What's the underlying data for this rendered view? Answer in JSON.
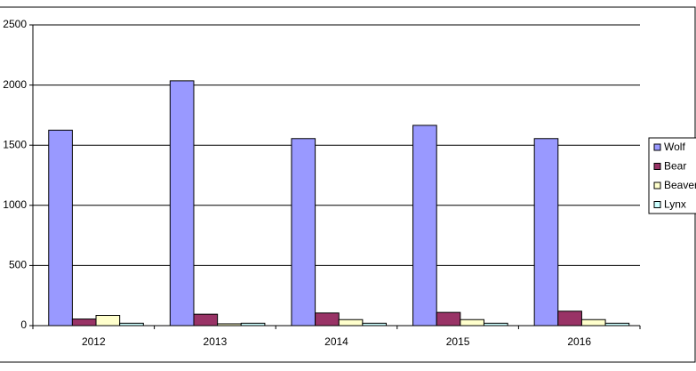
{
  "chart_data": {
    "type": "bar",
    "categories": [
      "2012",
      "2013",
      "2014",
      "2015",
      "2016"
    ],
    "series": [
      {
        "name": "Wolf",
        "color": "#9999ff",
        "values": [
          1625,
          2035,
          1555,
          1665,
          1555
        ]
      },
      {
        "name": "Bear",
        "color": "#993366",
        "values": [
          55,
          95,
          105,
          110,
          120
        ]
      },
      {
        "name": "Beaver",
        "color": "#ffffcc",
        "values": [
          85,
          15,
          50,
          50,
          50
        ]
      },
      {
        "name": "Lynx",
        "color": "#ccffff",
        "values": [
          20,
          20,
          20,
          20,
          20
        ]
      }
    ],
    "ylim": [
      0,
      2500
    ],
    "yticks": [
      0,
      500,
      1000,
      1500,
      2000,
      2500
    ],
    "grid": true,
    "legend": "right"
  }
}
